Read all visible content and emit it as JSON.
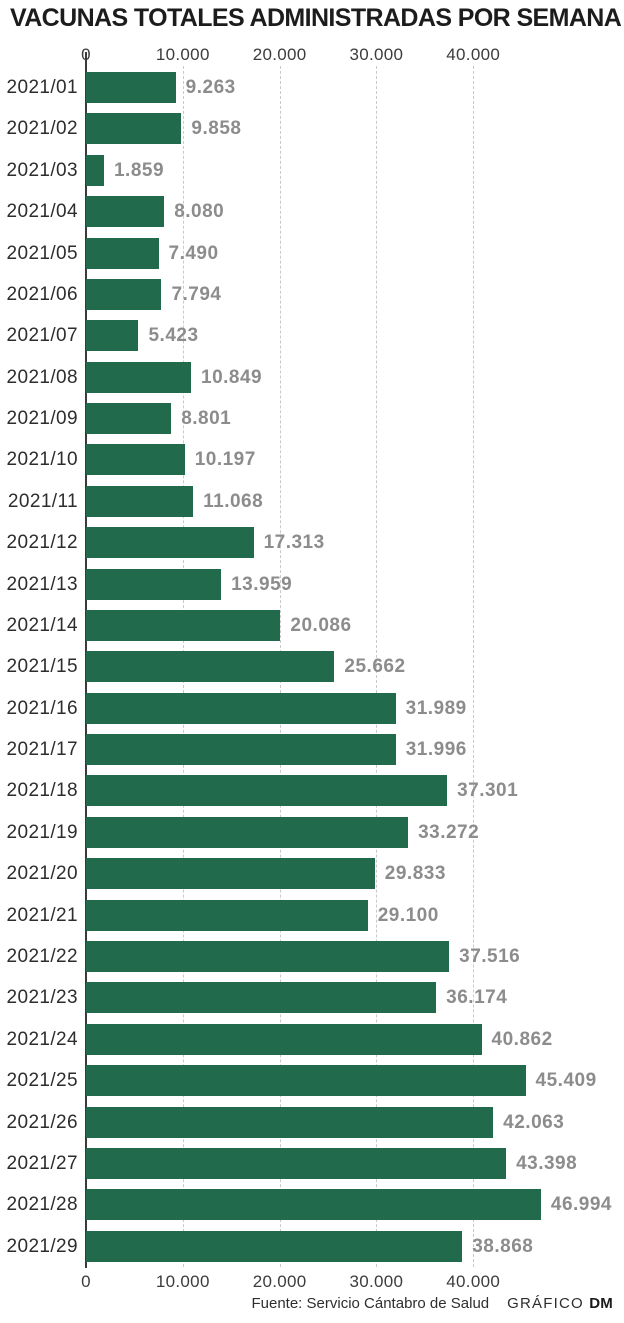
{
  "title": "VACUNAS TOTALES ADMINISTRADAS POR SEMANA",
  "chart_data": {
    "type": "bar",
    "orientation": "horizontal",
    "title": "VACUNAS TOTALES ADMINISTRADAS POR SEMANA",
    "categories": [
      "2021/01",
      "2021/02",
      "2021/03",
      "2021/04",
      "2021/05",
      "2021/06",
      "2021/07",
      "2021/08",
      "2021/09",
      "2021/10",
      "2021/11",
      "2021/12",
      "2021/13",
      "2021/14",
      "2021/15",
      "2021/16",
      "2021/17",
      "2021/18",
      "2021/19",
      "2021/20",
      "2021/21",
      "2021/22",
      "2021/23",
      "2021/24",
      "2021/25",
      "2021/26",
      "2021/27",
      "2021/28",
      "2021/29"
    ],
    "values": [
      9263,
      9858,
      1859,
      8080,
      7490,
      7794,
      5423,
      10849,
      8801,
      10197,
      11068,
      17313,
      13959,
      20086,
      25662,
      31989,
      31996,
      37301,
      33272,
      29833,
      29100,
      37516,
      36174,
      40862,
      45409,
      42063,
      43398,
      46994,
      38868
    ],
    "value_labels": [
      "9.263",
      "9.858",
      "1.859",
      "8.080",
      "7.490",
      "7.794",
      "5.423",
      "10.849",
      "8.801",
      "10.197",
      "11.068",
      "17.313",
      "13.959",
      "20.086",
      "25.662",
      "31.989",
      "31.996",
      "37.301",
      "33.272",
      "29.833",
      "29.100",
      "37.516",
      "36.174",
      "40.862",
      "45.409",
      "42.063",
      "43.398",
      "46.994",
      "38.868"
    ],
    "xlabel": "",
    "ylabel": "",
    "xlim": [
      0,
      50000
    ],
    "x_ticks": {
      "values": [
        0,
        10000,
        20000,
        30000,
        40000
      ],
      "labels": [
        "0",
        "10.000",
        "20.000",
        "30.000",
        "40.000"
      ]
    },
    "grid": "dashed-vertical",
    "legend": "none",
    "bar_color": "#216b4c",
    "value_label_color": "#8c8c8c"
  },
  "footer": {
    "source": "Fuente: Servicio Cántabro de Salud",
    "credit_prefix": "GRÁFICO",
    "credit_brand": "DM"
  }
}
